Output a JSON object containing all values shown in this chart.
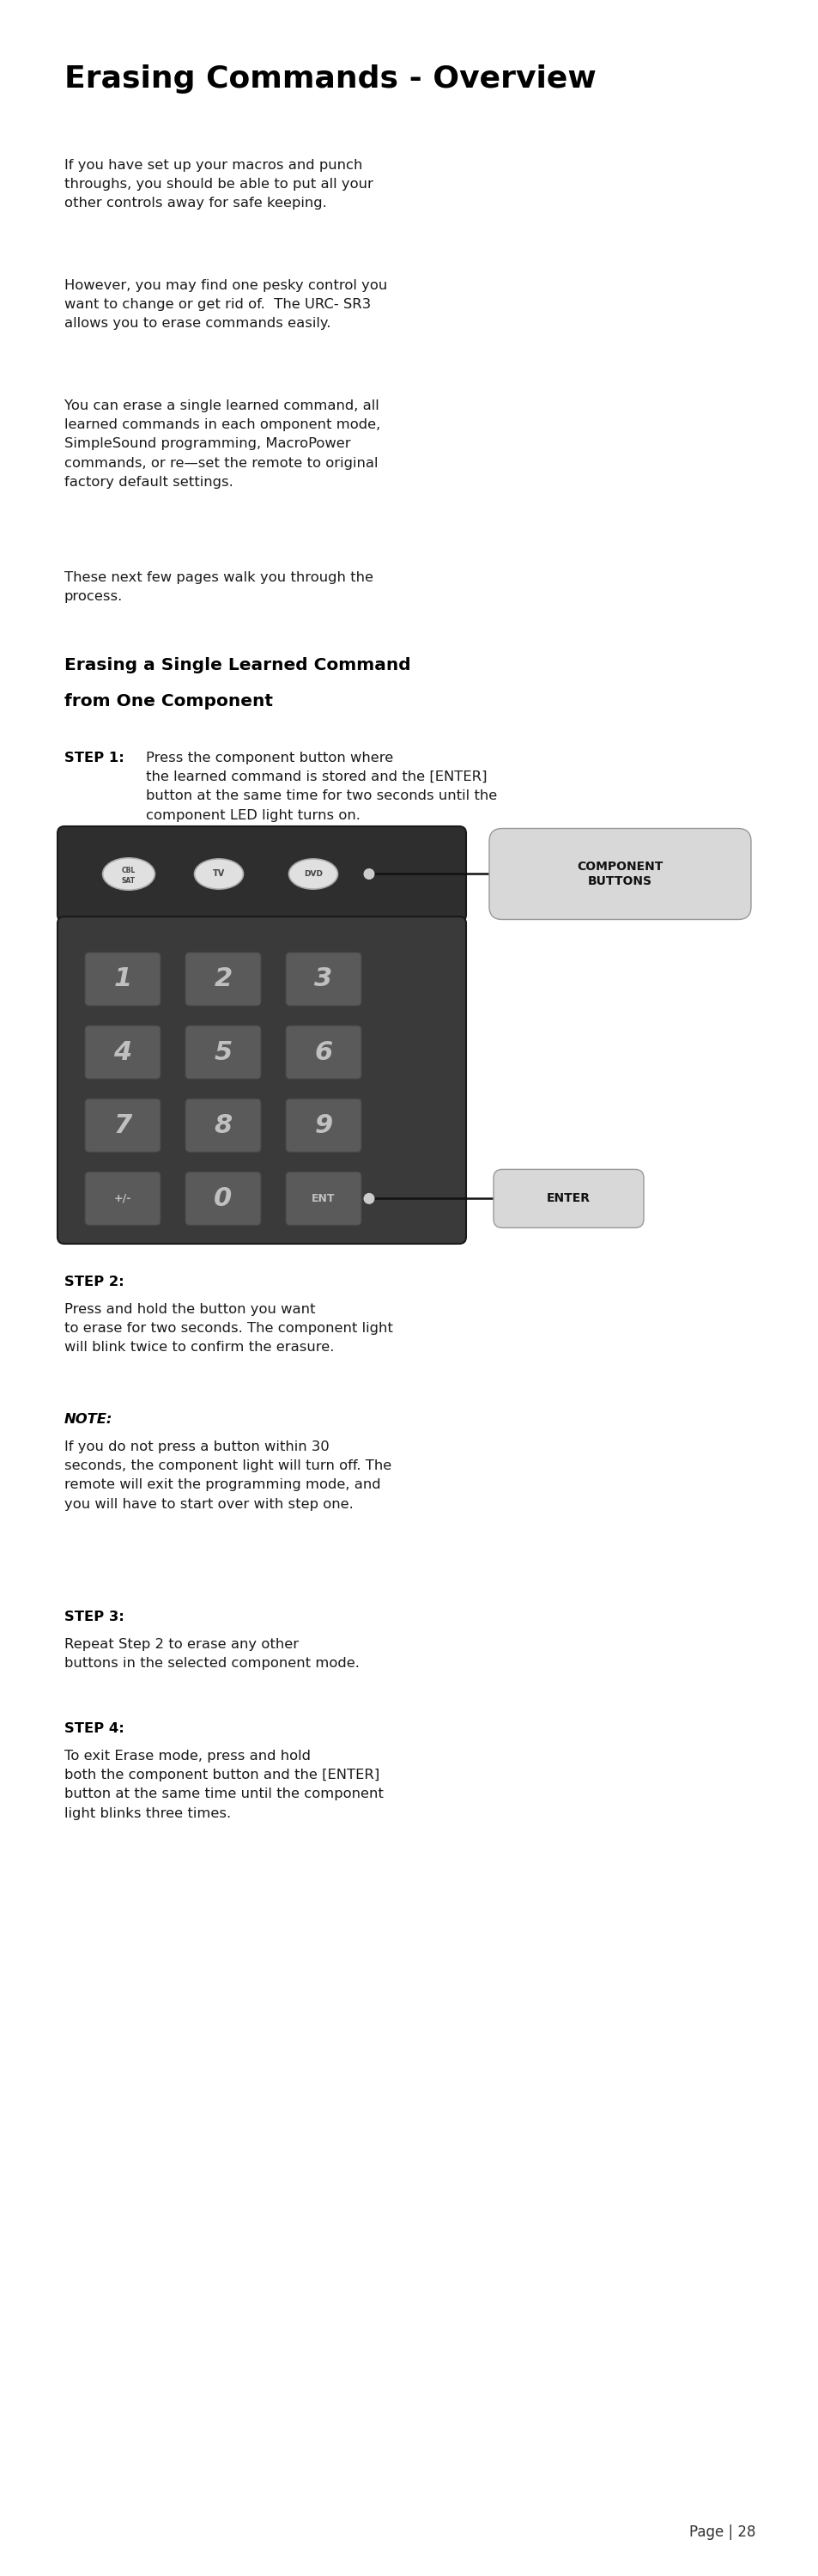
{
  "title": "Erasing Commands - Overview",
  "bg_color": "#ffffff",
  "text_color": "#1a1a1a",
  "para1": "If you have set up your macros and punch\nthroughs, you should be able to put all your\nother controls away for safe keeping.",
  "para2": "However, you may find one pesky control you\nwant to change or get rid of.  The URC- SR3\nallows you to erase commands easily.",
  "para3": "You can erase a single learned command, all\nlearned commands in each omponent mode,\nSimpleSound programming, MacroPower\ncommands, or re—set the remote to original\nfactory default settings.",
  "para4": "These next few pages walk you through the\nprocess.",
  "subheading_line1": "Erasing a Single Learned Command",
  "subheading_line2": "from One Component",
  "step1_body": "Press the component button where\nthe learned command is stored and the [ENTER]\nbutton at the same time for two seconds until the\ncomponent LED light turns on.",
  "step2_body": "Press and hold the button you want\nto erase for two seconds. The component light\nwill blink twice to confirm the erasure.",
  "note_body": "If you do not press a button within 30\nseconds, the component light will turn off. The\nremote will exit the programming mode, and\nyou will have to start over with step one.",
  "step3_body": "Repeat Step 2 to erase any other\nbuttons in the selected component mode.",
  "step4_body": "To exit Erase mode, press and hold\nboth the component button and the [ENTER]\nbutton at the same time until the component\nlight blinks three times.",
  "label_component": "COMPONENT\nBUTTONS",
  "label_enter": "ENTER",
  "page_text": "Page | 28"
}
